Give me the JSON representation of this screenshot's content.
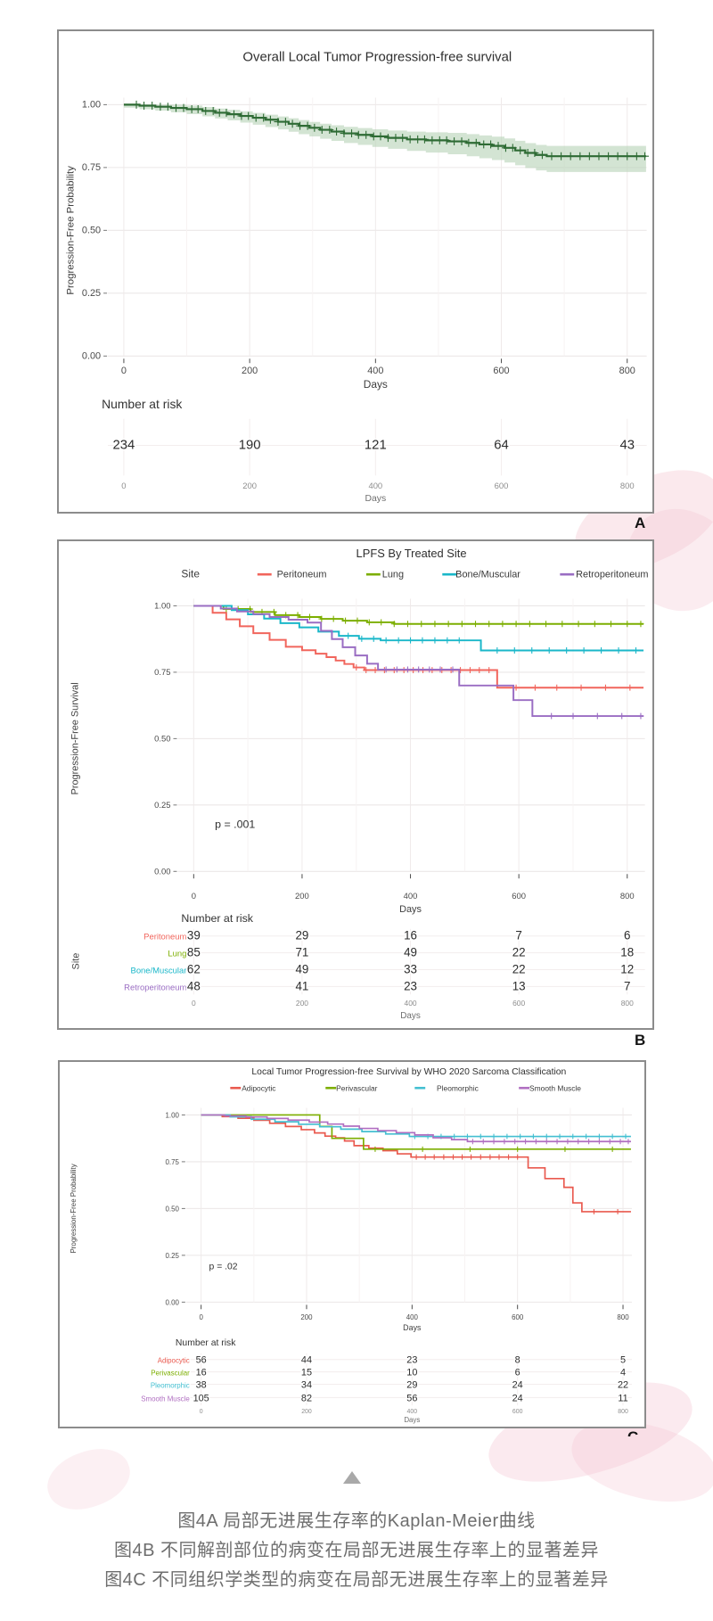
{
  "page": {
    "background": "#ffffff",
    "watermark_color": "#f2bfcd"
  },
  "caption": {
    "lines": [
      "图4A 局部无进展生存率的Kaplan-Meier曲线",
      "图4B  不同解剖部位的病变在局部无进展生存率上的显著差异",
      "图4C  不同组织学类型的病变在局部无进展生存率上的显著差异"
    ],
    "collapse_icon": "triangle-up"
  },
  "chart_data": [
    {
      "type": "line",
      "chart_style": "kaplan-meier-step",
      "panel_letter": "A",
      "title": "Overall Local Tumor Progression-free survival",
      "xlabel": "Days",
      "ylabel": "Progression-Free Probability",
      "xticks": [
        0,
        200,
        400,
        600,
        800
      ],
      "ytick_labels": [
        "0.00",
        "0.25",
        "0.50",
        "0.75",
        "1.00"
      ],
      "xlim": [
        0,
        830
      ],
      "ylim": [
        0,
        1
      ],
      "grid": true,
      "pvalue": null,
      "legend": null,
      "confidence_band": {
        "color": "#b5d2b6",
        "opacity": 0.6,
        "upper_offset": [
          0.01,
          0.048
        ],
        "lower_offset": [
          0.012,
          0.075
        ]
      },
      "series": [
        {
          "name": "Overall",
          "color": "#2e6b34",
          "points": [
            [
              0,
              1.0
            ],
            [
              25,
              0.996
            ],
            [
              50,
              0.992
            ],
            [
              75,
              0.987
            ],
            [
              100,
              0.982
            ],
            [
              125,
              0.975
            ],
            [
              145,
              0.968
            ],
            [
              165,
              0.962
            ],
            [
              185,
              0.955
            ],
            [
              205,
              0.948
            ],
            [
              225,
              0.94
            ],
            [
              245,
              0.932
            ],
            [
              262,
              0.924
            ],
            [
              278,
              0.916
            ],
            [
              295,
              0.908
            ],
            [
              312,
              0.9
            ],
            [
              330,
              0.893
            ],
            [
              350,
              0.886
            ],
            [
              372,
              0.88
            ],
            [
              395,
              0.874
            ],
            [
              420,
              0.868
            ],
            [
              450,
              0.862
            ],
            [
              480,
              0.858
            ],
            [
              515,
              0.854
            ],
            [
              545,
              0.848
            ],
            [
              565,
              0.842
            ],
            [
              585,
              0.836
            ],
            [
              605,
              0.828
            ],
            [
              622,
              0.818
            ],
            [
              638,
              0.808
            ],
            [
              655,
              0.8
            ],
            [
              672,
              0.795
            ]
          ],
          "censor_days": [
            20,
            32,
            45,
            58,
            70,
            83,
            95,
            108,
            118,
            130,
            142,
            152,
            163,
            175,
            187,
            198,
            210,
            222,
            233,
            245,
            257,
            268,
            280,
            292,
            303,
            315,
            327,
            338,
            350,
            362,
            373,
            385,
            397,
            408,
            420,
            432,
            443,
            455,
            467,
            478,
            490,
            502,
            513,
            525,
            537,
            548,
            560,
            572,
            583,
            595,
            607,
            618,
            630,
            642,
            653,
            665,
            680,
            695,
            710,
            725,
            740,
            755,
            770,
            785,
            800,
            815,
            828
          ]
        }
      ],
      "risk_table": {
        "header": "Number at risk",
        "axis_label": "Days",
        "xticks": [
          0,
          200,
          400,
          600,
          800
        ],
        "rows": [
          {
            "label": null,
            "color": "#333333",
            "values": [
              234,
              190,
              121,
              64,
              43
            ]
          }
        ]
      }
    },
    {
      "type": "line",
      "chart_style": "kaplan-meier-step",
      "panel_letter": "B",
      "title": "LPFS By Treated Site",
      "xlabel": "Days",
      "ylabel": "Progression-Free Survival",
      "xticks": [
        0,
        200,
        400,
        600,
        800
      ],
      "ytick_labels": [
        "0.00",
        "0.25",
        "0.50",
        "0.75",
        "1.00"
      ],
      "xlim": [
        0,
        830
      ],
      "ylim": [
        0,
        1
      ],
      "grid": true,
      "pvalue": "p = .001",
      "legend": {
        "title": "Site"
      },
      "confidence_band": null,
      "series": [
        {
          "name": "Peritoneum",
          "color": "#f1655c",
          "points": [
            [
              0,
              1.0
            ],
            [
              35,
              0.974
            ],
            [
              60,
              0.949
            ],
            [
              85,
              0.923
            ],
            [
              110,
              0.897
            ],
            [
              140,
              0.872
            ],
            [
              170,
              0.846
            ],
            [
              200,
              0.833
            ],
            [
              225,
              0.82
            ],
            [
              245,
              0.807
            ],
            [
              262,
              0.794
            ],
            [
              278,
              0.781
            ],
            [
              295,
              0.768
            ],
            [
              315,
              0.758
            ],
            [
              560,
              0.692
            ]
          ],
          "censor_days": [
            300,
            318,
            335,
            352,
            370,
            388,
            405,
            423,
            440,
            458,
            475,
            492,
            510,
            527,
            545,
            595,
            630,
            670,
            715,
            760,
            805
          ]
        },
        {
          "name": "Lung",
          "color": "#7cae00",
          "points": [
            [
              0,
              1.0
            ],
            [
              55,
              0.988
            ],
            [
              105,
              0.977
            ],
            [
              150,
              0.965
            ],
            [
              195,
              0.958
            ],
            [
              235,
              0.951
            ],
            [
              275,
              0.944
            ],
            [
              320,
              0.938
            ],
            [
              370,
              0.932
            ]
          ],
          "censor_days": [
            60,
            82,
            104,
            126,
            148,
            170,
            192,
            214,
            236,
            258,
            280,
            302,
            324,
            346,
            370,
            395,
            420,
            445,
            470,
            495,
            520,
            545,
            570,
            595,
            620,
            650,
            680,
            710,
            740,
            770,
            800,
            825
          ]
        },
        {
          "name": "Bone/Muscular",
          "color": "#1ab7c9",
          "points": [
            [
              0,
              1.0
            ],
            [
              70,
              0.984
            ],
            [
              100,
              0.968
            ],
            [
              130,
              0.952
            ],
            [
              160,
              0.935
            ],
            [
              195,
              0.919
            ],
            [
              230,
              0.903
            ],
            [
              268,
              0.887
            ],
            [
              305,
              0.876
            ],
            [
              345,
              0.87
            ],
            [
              530,
              0.832
            ]
          ],
          "censor_days": [
            285,
            310,
            332,
            355,
            378,
            400,
            422,
            445,
            468,
            490,
            560,
            592,
            624,
            656,
            688,
            720,
            752,
            784,
            816
          ]
        },
        {
          "name": "Retroperitoneum",
          "color": "#9a6dc3",
          "points": [
            [
              0,
              1.0
            ],
            [
              50,
              0.99
            ],
            [
              80,
              0.979
            ],
            [
              110,
              0.969
            ],
            [
              140,
              0.958
            ],
            [
              175,
              0.948
            ],
            [
              210,
              0.937
            ],
            [
              235,
              0.906
            ],
            [
              255,
              0.875
            ],
            [
              275,
              0.844
            ],
            [
              298,
              0.813
            ],
            [
              320,
              0.782
            ],
            [
              340,
              0.76
            ],
            [
              490,
              0.7
            ],
            [
              590,
              0.645
            ],
            [
              625,
              0.585
            ]
          ],
          "censor_days": [
            355,
            375,
            395,
            415,
            435,
            455,
            478,
            660,
            700,
            745,
            790,
            825
          ]
        }
      ],
      "risk_table": {
        "header": "Number at risk",
        "axis_label": "Days",
        "side_label": "Site",
        "xticks": [
          0,
          200,
          400,
          600,
          800
        ],
        "rows": [
          {
            "label": "Peritoneum",
            "color": "#f1655c",
            "values": [
              39,
              29,
              16,
              7,
              6
            ]
          },
          {
            "label": "Lung",
            "color": "#7cae00",
            "values": [
              85,
              71,
              49,
              22,
              18
            ]
          },
          {
            "label": "Bone/Muscular",
            "color": "#1ab7c9",
            "values": [
              62,
              49,
              33,
              22,
              12
            ]
          },
          {
            "label": "Retroperitoneum",
            "color": "#9a6dc3",
            "values": [
              48,
              41,
              23,
              13,
              7
            ]
          }
        ]
      }
    },
    {
      "type": "line",
      "chart_style": "kaplan-meier-step",
      "panel_letter": "C",
      "title": "Local Tumor Progression-free Survival by WHO 2020 Sarcoma Classification",
      "xlabel": "Days",
      "ylabel": "Progression-Free Probability",
      "xticks": [
        0,
        200,
        400,
        600,
        800
      ],
      "ytick_labels": [
        "0.00",
        "0.25",
        "0.50",
        "0.75",
        "1.00"
      ],
      "xlim": [
        0,
        815
      ],
      "ylim": [
        0,
        1
      ],
      "grid": true,
      "pvalue": "p = .02",
      "legend": {
        "title": null
      },
      "confidence_band": null,
      "series": [
        {
          "name": "Adipocytic",
          "color": "#e9594e",
          "points": [
            [
              0,
              1.0
            ],
            [
              40,
              0.991
            ],
            [
              70,
              0.982
            ],
            [
              100,
              0.971
            ],
            [
              130,
              0.955
            ],
            [
              160,
              0.938
            ],
            [
              190,
              0.921
            ],
            [
              215,
              0.904
            ],
            [
              235,
              0.887
            ],
            [
              255,
              0.878
            ],
            [
              272,
              0.861
            ],
            [
              290,
              0.836
            ],
            [
              318,
              0.822
            ],
            [
              345,
              0.809
            ],
            [
              372,
              0.792
            ],
            [
              398,
              0.775
            ],
            [
              620,
              0.717
            ],
            [
              652,
              0.66
            ],
            [
              688,
              0.613
            ],
            [
              705,
              0.53
            ],
            [
              722,
              0.483
            ]
          ],
          "censor_days": [
            408,
            425,
            442,
            460,
            478,
            495,
            512,
            530,
            548,
            565,
            583,
            600,
            745,
            790
          ]
        },
        {
          "name": "Perivascular",
          "color": "#7cae00",
          "points": [
            [
              0,
              1.0
            ],
            [
              225,
              0.938
            ],
            [
              248,
              0.875
            ],
            [
              308,
              0.817
            ]
          ],
          "censor_days": [
            330,
            420,
            510,
            600,
            690,
            780
          ]
        },
        {
          "name": "Pleomorphic",
          "color": "#43bfd1",
          "points": [
            [
              0,
              1.0
            ],
            [
              55,
              0.99
            ],
            [
              95,
              0.977
            ],
            [
              140,
              0.963
            ],
            [
              185,
              0.95
            ],
            [
              225,
              0.937
            ],
            [
              265,
              0.924
            ],
            [
              305,
              0.911
            ],
            [
              350,
              0.898
            ],
            [
              395,
              0.885
            ]
          ],
          "censor_days": [
            405,
            430,
            455,
            480,
            505,
            530,
            555,
            580,
            605,
            630,
            655,
            680,
            705,
            730,
            755,
            780,
            805
          ]
        },
        {
          "name": "Smooth Muscle",
          "color": "#b06fc1",
          "points": [
            [
              0,
              1.0
            ],
            [
              45,
              0.995
            ],
            [
              85,
              0.989
            ],
            [
              125,
              0.981
            ],
            [
              165,
              0.972
            ],
            [
              205,
              0.962
            ],
            [
              240,
              0.951
            ],
            [
              270,
              0.94
            ],
            [
              300,
              0.928
            ],
            [
              335,
              0.916
            ],
            [
              370,
              0.905
            ],
            [
              405,
              0.893
            ],
            [
              440,
              0.878
            ],
            [
              475,
              0.868
            ],
            [
              505,
              0.858
            ]
          ],
          "censor_days": [
            515,
            535,
            555,
            575,
            595,
            615,
            635,
            655,
            675,
            695,
            715,
            735,
            755,
            775,
            795,
            810
          ]
        }
      ],
      "risk_table": {
        "header": "Number at risk",
        "axis_label": "Days",
        "xticks": [
          0,
          200,
          400,
          600,
          800
        ],
        "rows": [
          {
            "label": "Adipocytic",
            "color": "#e9594e",
            "values": [
              56,
              44,
              23,
              8,
              5
            ]
          },
          {
            "label": "Perivascular",
            "color": "#7cae00",
            "values": [
              16,
              15,
              10,
              6,
              4
            ]
          },
          {
            "label": "Pleomorphic",
            "color": "#43bfd1",
            "values": [
              38,
              34,
              29,
              24,
              22
            ]
          },
          {
            "label": "Smooth Muscle",
            "color": "#b06fc1",
            "values": [
              105,
              82,
              56,
              24,
              11
            ]
          }
        ]
      }
    }
  ]
}
